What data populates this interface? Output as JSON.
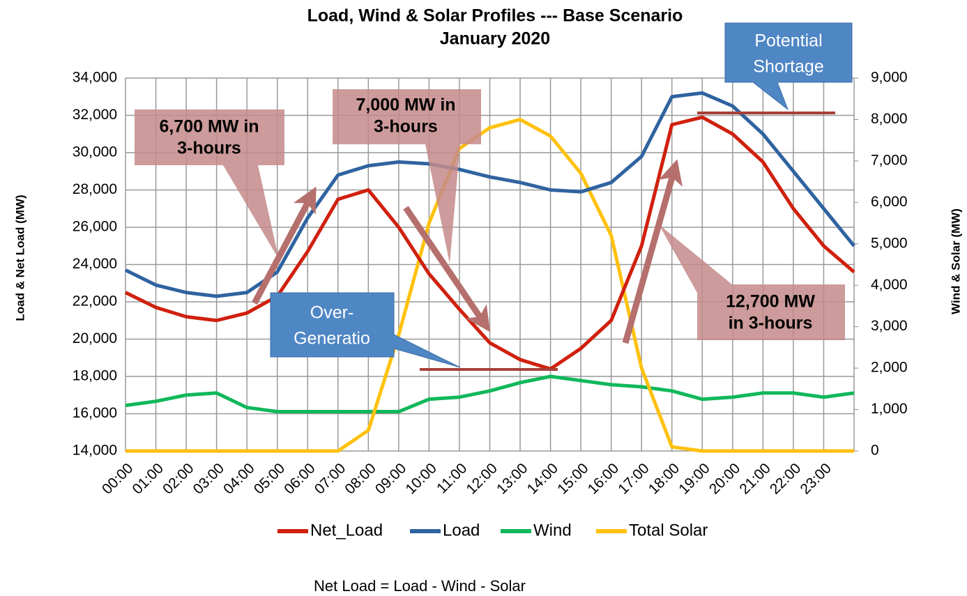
{
  "chart_data": {
    "type": "line",
    "title": "Load, Wind & Solar Profiles --- Base Scenario",
    "subtitle": "January 2020",
    "y_label": "Load & Net Load (MW)",
    "y2_label": "Wind & Solar (MW)",
    "footnote": "Net Load = Load - Wind - Solar",
    "categories": [
      "00:00",
      "01:00",
      "02:00",
      "03:00",
      "04:00",
      "05:00",
      "06:00",
      "07:00",
      "08:00",
      "09:00",
      "10:00",
      "11:00",
      "12:00",
      "13:00",
      "14:00",
      "15:00",
      "16:00",
      "17:00",
      "18:00",
      "19:00",
      "20:00",
      "21:00",
      "22:00",
      "23:00",
      null
    ],
    "series": [
      {
        "name": "Net_Load",
        "color": "#d0200e",
        "values": [
          22500,
          21700,
          21200,
          21000,
          21400,
          22300,
          24700,
          27500,
          28000,
          26000,
          23500,
          21600,
          19800,
          18900,
          18400,
          19500,
          21000,
          25000,
          31500,
          31900,
          31000,
          29500,
          27000,
          25000,
          23600
        ]
      },
      {
        "name": "Load",
        "color": "#2f63a0",
        "values": [
          23700,
          22900,
          22500,
          22300,
          22500,
          23600,
          26500,
          28800,
          29300,
          29500,
          29400,
          29100,
          28700,
          28400,
          28000,
          27900,
          28400,
          29800,
          33000,
          33200,
          32500,
          31000,
          29000,
          27000,
          25000
        ]
      },
      {
        "name": "Wind",
        "color": "#10b85a",
        "axis": "y2",
        "values": [
          1100,
          1200,
          1350,
          1400,
          1050,
          950,
          950,
          950,
          950,
          950,
          1250,
          1300,
          1450,
          1650,
          1800,
          1700,
          1600,
          1550,
          1450,
          1250,
          1300,
          1400,
          1400,
          1300,
          1400
        ]
      },
      {
        "name": "Total Solar",
        "color": "#ffc10e",
        "axis": "y2",
        "values": [
          0,
          0,
          0,
          0,
          0,
          0,
          0,
          0,
          500,
          2800,
          5500,
          7300,
          7800,
          8000,
          7600,
          6700,
          5200,
          2000,
          100,
          0,
          0,
          0,
          0,
          0,
          0
        ]
      }
    ],
    "ylim": [
      14000,
      34000
    ],
    "yticks": [
      {
        "value": 14000,
        "label": "14,000"
      },
      {
        "value": 16000,
        "label": "16,000"
      },
      {
        "value": 18000,
        "label": "18,000"
      },
      {
        "value": 20000,
        "label": "20,000"
      },
      {
        "value": 22000,
        "label": "22,000"
      },
      {
        "value": 24000,
        "label": "24,000"
      },
      {
        "value": 26000,
        "label": "26,000"
      },
      {
        "value": 28000,
        "label": "28,000"
      },
      {
        "value": 30000,
        "label": "30,000"
      },
      {
        "value": 32000,
        "label": "32,000"
      },
      {
        "value": 34000,
        "label": "34,000"
      }
    ],
    "y2lim": [
      0,
      9000
    ],
    "y2ticks": [
      0,
      {
        "value": 1000,
        "label": "1,000"
      },
      {
        "value": 2000,
        "label": "2,000"
      },
      {
        "value": 3000,
        "label": "3,000"
      },
      {
        "value": 4000,
        "label": "4,000"
      },
      {
        "value": 5000,
        "label": "5,000"
      },
      {
        "value": 6000,
        "label": "6,000"
      },
      {
        "value": 7000,
        "label": "7,000"
      },
      {
        "value": 8000,
        "label": "8,000"
      },
      {
        "value": 9000,
        "label": "9,000"
      }
    ],
    "grid": true,
    "legend": "bottom",
    "annotations": [
      {
        "lines": [
          "6,700 MW in",
          "3-hours"
        ]
      },
      {
        "lines": [
          "7,000 MW in",
          "3-hours"
        ]
      },
      {
        "lines": [
          "12,700 MW",
          "in 3-hours"
        ]
      },
      {
        "lines": [
          "Over-",
          "Generatio"
        ]
      },
      {
        "lines": [
          "Potential",
          "Shortage"
        ]
      }
    ]
  }
}
